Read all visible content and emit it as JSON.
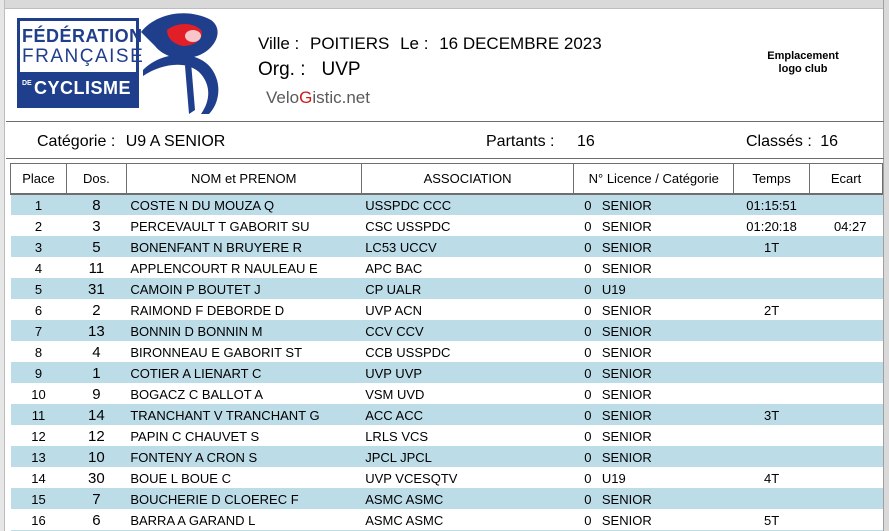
{
  "header": {
    "ville_label": "Ville :",
    "ville": "POITIERS",
    "le_label": "Le :",
    "date": "16 DECEMBRE 2023",
    "org_label": "Org. :",
    "org": "UVP",
    "velo_prefix": "Velo",
    "velo_g": "G",
    "velo_suffix": "istic.net",
    "emplacement": "Emplacement logo club"
  },
  "logo": {
    "line1": "FÉDÉRATION",
    "line2": "FRANÇAISE",
    "de": "DE",
    "line3": "CYCLISME"
  },
  "category": {
    "cat_label": "Catégorie :",
    "cat_value": "U9 A SENIOR",
    "partants_label": "Partants :",
    "partants_value": "16",
    "classes_label": "Classés :",
    "classes_value": "16"
  },
  "columns": [
    "Place",
    "Dos.",
    "NOM et PRENOM",
    "ASSOCIATION",
    "N° Licence / Catégorie",
    "Temps",
    "Ecart"
  ],
  "rows": [
    {
      "place": "1",
      "dos": "8",
      "nom": "COSTE N   DU MOUZA Q",
      "assoc": "USSPDC CCC",
      "lic": "0",
      "cat": "SENIOR",
      "temps": "01:15:51",
      "ecart": ""
    },
    {
      "place": "2",
      "dos": "3",
      "nom": "PERCEVAULT T   GABORIT SU",
      "assoc": "CSC USSPDC",
      "lic": "0",
      "cat": "SENIOR",
      "temps": "01:20:18",
      "ecart": "04:27"
    },
    {
      "place": "3",
      "dos": "5",
      "nom": "BONENFANT N   BRUYERE R",
      "assoc": "LC53 UCCV",
      "lic": "0",
      "cat": "SENIOR",
      "temps": "1T",
      "ecart": ""
    },
    {
      "place": "4",
      "dos": "11",
      "nom": "APPLENCOURT R   NAULEAU E",
      "assoc": "APC BAC",
      "lic": "0",
      "cat": "SENIOR",
      "temps": "",
      "ecart": ""
    },
    {
      "place": "5",
      "dos": "31",
      "nom": "CAMOIN P   BOUTET J",
      "assoc": "CP UALR",
      "lic": "0",
      "cat": "U19",
      "temps": "",
      "ecart": ""
    },
    {
      "place": "6",
      "dos": "2",
      "nom": "RAIMOND F   DEBORDE D",
      "assoc": "UVP ACN",
      "lic": "0",
      "cat": "SENIOR",
      "temps": "2T",
      "ecart": ""
    },
    {
      "place": "7",
      "dos": "13",
      "nom": "BONNIN D   BONNIN M",
      "assoc": "CCV CCV",
      "lic": "0",
      "cat": "SENIOR",
      "temps": "",
      "ecart": ""
    },
    {
      "place": "8",
      "dos": "4",
      "nom": "BIRONNEAU E   GABORIT ST",
      "assoc": "CCB USSPDC",
      "lic": "0",
      "cat": "SENIOR",
      "temps": "",
      "ecart": ""
    },
    {
      "place": "9",
      "dos": "1",
      "nom": "COTIER A   LIENART C",
      "assoc": "UVP UVP",
      "lic": "0",
      "cat": "SENIOR",
      "temps": "",
      "ecart": ""
    },
    {
      "place": "10",
      "dos": "9",
      "nom": "BOGACZ C   BALLOT A",
      "assoc": "VSM UVD",
      "lic": "0",
      "cat": "SENIOR",
      "temps": "",
      "ecart": ""
    },
    {
      "place": "11",
      "dos": "14",
      "nom": "TRANCHANT V   TRANCHANT G",
      "assoc": "ACC ACC",
      "lic": "0",
      "cat": "SENIOR",
      "temps": "3T",
      "ecart": ""
    },
    {
      "place": "12",
      "dos": "12",
      "nom": "PAPIN C   CHAUVET S",
      "assoc": "LRLS VCS",
      "lic": "0",
      "cat": "SENIOR",
      "temps": "",
      "ecart": ""
    },
    {
      "place": "13",
      "dos": "10",
      "nom": "FONTENY A   CRON S",
      "assoc": "JPCL JPCL",
      "lic": "0",
      "cat": "SENIOR",
      "temps": "",
      "ecart": ""
    },
    {
      "place": "14",
      "dos": "30",
      "nom": "BOUE L   BOUE C",
      "assoc": "UVP VCESQTV",
      "lic": "0",
      "cat": "U19",
      "temps": "4T",
      "ecart": ""
    },
    {
      "place": "15",
      "dos": "7",
      "nom": "BOUCHERIE D   CLOEREC F",
      "assoc": "ASMC ASMC",
      "lic": "0",
      "cat": "SENIOR",
      "temps": "",
      "ecart": ""
    },
    {
      "place": "16",
      "dos": "6",
      "nom": "BARRA A   GARAND L",
      "assoc": "ASMC ASMC",
      "lic": "0",
      "cat": "SENIOR",
      "temps": "5T",
      "ecart": ""
    }
  ]
}
